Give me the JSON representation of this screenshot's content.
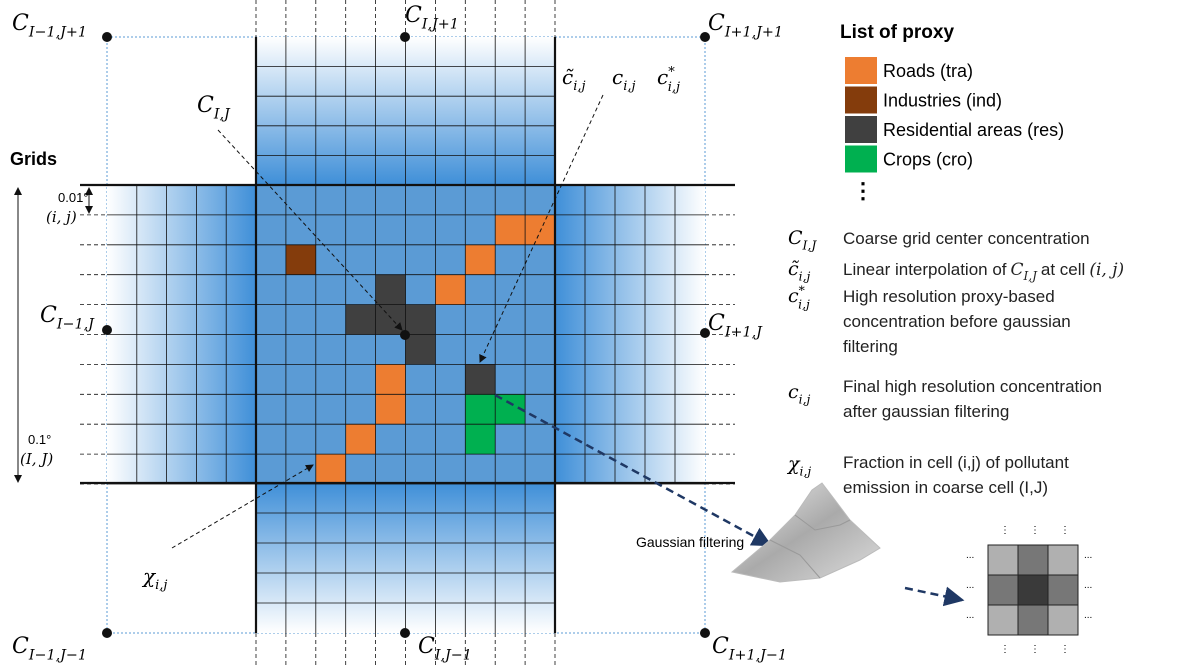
{
  "coarse_labels": [
    {
      "base": "C",
      "sub": "I−1,J+1"
    },
    {
      "base": "C",
      "sub": "I,J+1"
    },
    {
      "base": "C",
      "sub": "I+1,J+1"
    },
    {
      "base": "C",
      "sub": "I−1,J"
    },
    {
      "base": "C",
      "sub": "I,J"
    },
    {
      "base": "C",
      "sub": "I+1,J"
    },
    {
      "base": "C",
      "sub": "I−1,J−1"
    },
    {
      "base": "C",
      "sub": "I,J−1"
    },
    {
      "base": "C",
      "sub": "I+1,J−1"
    }
  ],
  "fine_labels": [
    {
      "base": "c̃",
      "sub": "i,j"
    },
    {
      "base": "c",
      "sub": "i,j"
    },
    {
      "base": "c",
      "sup": "*",
      "sub": "i,j"
    },
    {
      "base": "χ",
      "sub": "i,j"
    }
  ],
  "grids": {
    "title": "Grids",
    "fine_size": "0.01°",
    "fine_index": "(i, j)",
    "coarse_size": "0.1°",
    "coarse_index": "(I, J)"
  },
  "legend": {
    "title": "List of proxy",
    "items": [
      {
        "label": "Roads (tra)",
        "color": "#ed7d31"
      },
      {
        "label": "Industries (ind)",
        "color": "#843c0c"
      },
      {
        "label": "Residential areas (res)",
        "color": "#404040"
      },
      {
        "label": "Crops (cro)",
        "color": "#00b050"
      }
    ]
  },
  "definitions": [
    {
      "symbol": {
        "base": "C",
        "sub": "I,J"
      },
      "lines": [
        "Coarse grid center concentration"
      ]
    },
    {
      "symbol": {
        "base": "c̃",
        "sub": "i,j"
      },
      "lines": [
        "Linear interpolation of"
      ],
      "ref": {
        "base": "C",
        "sub": "I,J"
      },
      "after": "at cell",
      "cell": "(i, j)"
    },
    {
      "symbol": {
        "base": "c",
        "sup": "*",
        "sub": "i,j"
      },
      "lines": [
        "High resolution proxy-based",
        "concentration before gaussian",
        "filtering"
      ]
    },
    {
      "symbol": {
        "base": "c",
        "sub": "i,j"
      },
      "lines": [
        "Final high resolution concentration",
        "after gaussian filtering"
      ]
    },
    {
      "symbol": {
        "base": "χ",
        "sub": "i,j"
      },
      "lines": [
        "Fraction in cell (i,j) of pollutant",
        "emission in coarse cell (I,J)"
      ]
    }
  ],
  "gaussian_label": "Gaussian filtering"
}
